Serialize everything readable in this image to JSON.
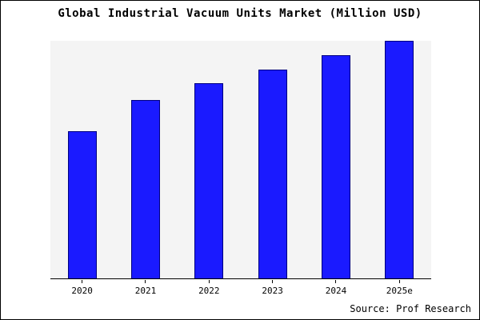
{
  "title": "Global Industrial Vacuum Units Market (Million USD)",
  "source": "Source: Prof Research",
  "chart_data": {
    "type": "bar",
    "categories": [
      "2020",
      "2021",
      "2022",
      "2023",
      "2024",
      "2025e"
    ],
    "values": [
      62,
      75,
      82,
      88,
      94,
      100
    ],
    "title": "Global Industrial Vacuum Units Market (Million USD)",
    "xlabel": "",
    "ylabel": "",
    "ylim": [
      0,
      100
    ],
    "grid": false,
    "legend": false,
    "bar_color": "#1a1aff",
    "bar_border_color": "#000080",
    "plot_bg": "#f4f4f4"
  }
}
